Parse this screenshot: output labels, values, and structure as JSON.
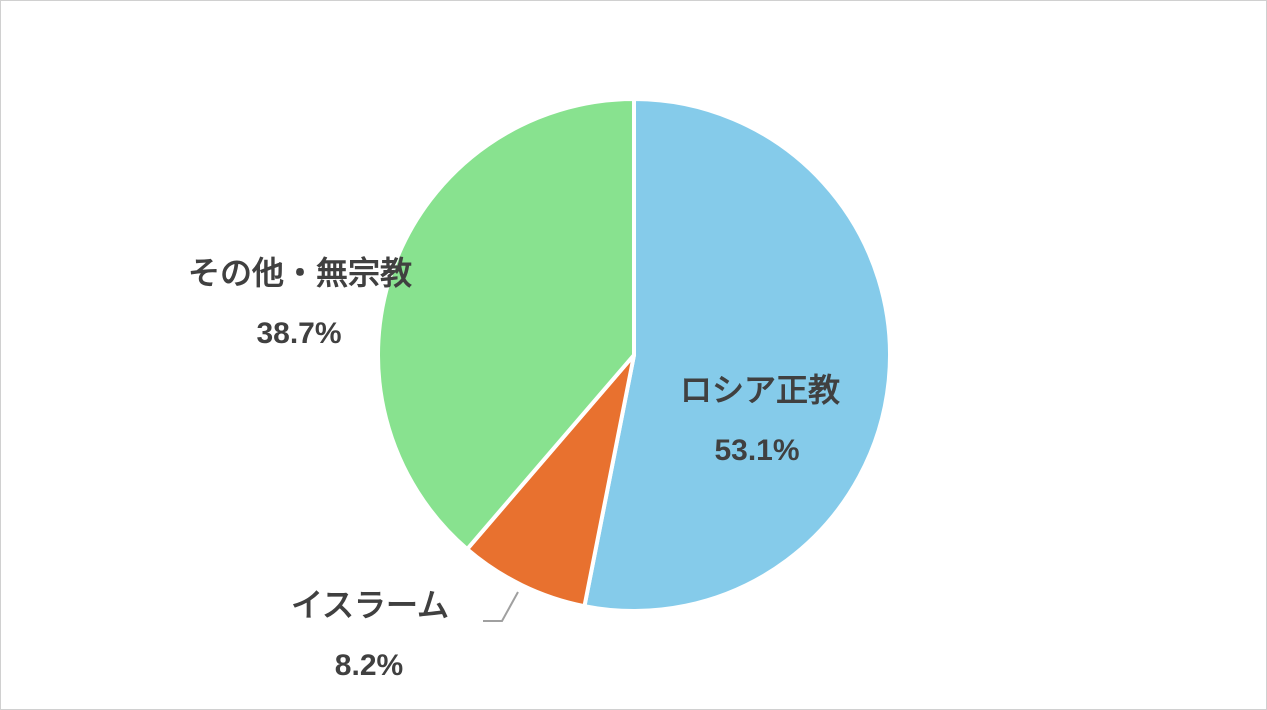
{
  "chart_data": {
    "type": "pie",
    "categories": [
      "ロシア正教",
      "イスラーム",
      "その他・無宗教"
    ],
    "values": [
      53.1,
      8.2,
      38.7
    ],
    "value_labels": [
      "53.1%",
      "8.2%",
      "38.7%"
    ],
    "colors": [
      "#85cbea",
      "#e8712f",
      "#88e28f"
    ]
  }
}
